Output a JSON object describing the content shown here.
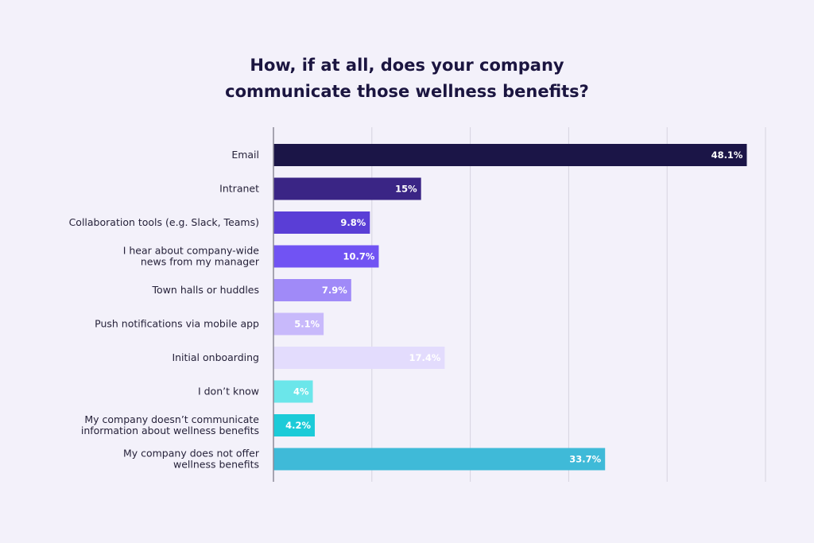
{
  "chart_data": {
    "type": "bar",
    "orientation": "horizontal",
    "title_lines": [
      "How, if at all, does your company",
      "communicate those wellness benefits?"
    ],
    "categories": [
      [
        "Email"
      ],
      [
        "Intranet"
      ],
      [
        "Collaboration tools (e.g. Slack, Teams)"
      ],
      [
        "I hear about company-wide",
        "news from my manager"
      ],
      [
        "Town halls or huddles"
      ],
      [
        "Push notifications via mobile app"
      ],
      [
        "Initial onboarding"
      ],
      [
        "I don’t know"
      ],
      [
        "My company doesn’t communicate",
        "information about wellness benefits"
      ],
      [
        "My company does not offer",
        "wellness benefits"
      ]
    ],
    "values": [
      48.1,
      15,
      9.8,
      10.7,
      7.9,
      5.1,
      17.4,
      4,
      4.2,
      33.7
    ],
    "value_labels": [
      "48.1%",
      "15%",
      "9.8%",
      "10.7%",
      "7.9%",
      "5.1%",
      "17.4%",
      "4%",
      "4.2%",
      "33.7%"
    ],
    "colors": [
      "#1b1547",
      "#3a2585",
      "#5a3ed6",
      "#7153f3",
      "#a08af8",
      "#c8b9fb",
      "#e3dcfd",
      "#6be6ea",
      "#1ccbd8",
      "#3fbad8"
    ],
    "label_colors": [
      "#ffffff",
      "#ffffff",
      "#ffffff",
      "#ffffff",
      "#ffffff",
      "#ffffff",
      "#ffffff",
      "#ffffff",
      "#ffffff",
      "#ffffff"
    ],
    "xlim": [
      0,
      50
    ],
    "grid_step": 10,
    "grid": true,
    "xlabel": "",
    "ylabel": ""
  }
}
